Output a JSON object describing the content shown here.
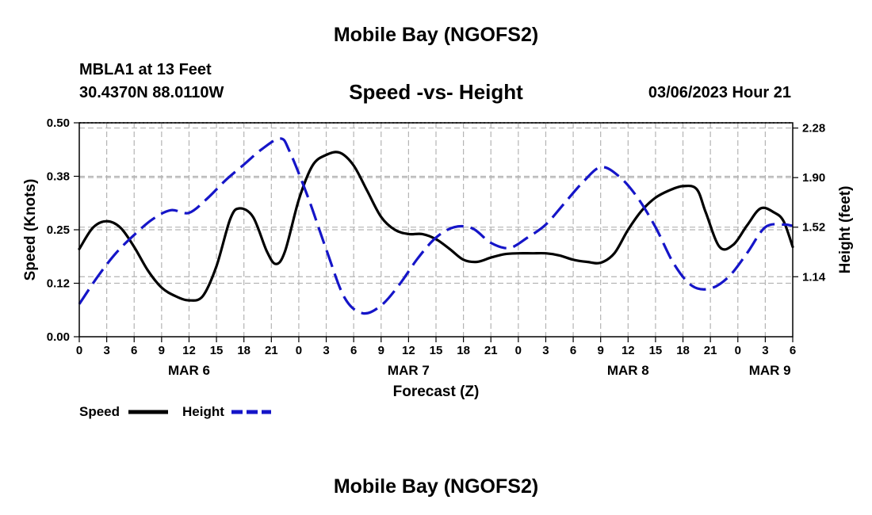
{
  "header": {
    "title": "Mobile Bay (NGOFS2)",
    "station": "MBLA1 at 13 Feet",
    "coords": "30.4370N  88.0110W",
    "subtitle": "Speed -vs- Height",
    "datetime": "03/06/2023 Hour 21"
  },
  "footer": {
    "title": "Mobile Bay (NGOFS2)"
  },
  "chart_data": {
    "type": "line",
    "xlabel": "Forecast (Z)",
    "ylabel": "Speed (Knots)",
    "ylabel_right": "Height (feet)",
    "xlim": [
      0,
      78
    ],
    "ylim": [
      0,
      0.5
    ],
    "ylim_right": [
      0.68,
      2.32
    ],
    "x_ticks": [
      0,
      3,
      6,
      9,
      12,
      15,
      18,
      21,
      24,
      27,
      30,
      33,
      36,
      39,
      42,
      45,
      48,
      51,
      54,
      57,
      60,
      63,
      66,
      69,
      72,
      75,
      78
    ],
    "x_tick_labels": [
      "0",
      "3",
      "6",
      "9",
      "12",
      "15",
      "18",
      "21",
      "0",
      "3",
      "6",
      "9",
      "12",
      "15",
      "18",
      "21",
      "0",
      "3",
      "6",
      "9",
      "12",
      "15",
      "18",
      "21",
      "0",
      "3",
      "6"
    ],
    "day_labels": [
      {
        "x": 12,
        "label": "MAR 6"
      },
      {
        "x": 36,
        "label": "MAR 7"
      },
      {
        "x": 60,
        "label": "MAR 8"
      },
      {
        "x": 75.5,
        "label": "MAR 9"
      }
    ],
    "y_ticks": [
      0.0,
      0.125,
      0.25,
      0.375,
      0.5
    ],
    "y_tick_labels": [
      "0.00",
      "0.12",
      "0.25",
      "0.38",
      "0.50"
    ],
    "y_ticks_right": [
      1.14,
      1.52,
      1.9,
      2.28
    ],
    "y_tick_labels_right": [
      "1.14",
      "1.52",
      "1.90",
      "2.28"
    ],
    "grid": true,
    "legend_position": "bottom-left",
    "series": [
      {
        "name": "Speed",
        "axis": "left",
        "color": "#000000",
        "style": "solid",
        "x": [
          0,
          1.5,
          3,
          4.5,
          6,
          7.5,
          9,
          10.5,
          12,
          13.5,
          15,
          16.5,
          17.5,
          19,
          20.5,
          21.5,
          22.5,
          24,
          25.5,
          27,
          28.5,
          30,
          31.5,
          33,
          34.5,
          36,
          37.5,
          39,
          40.5,
          42,
          43.5,
          45,
          46.5,
          48,
          49.5,
          51,
          52.5,
          54,
          55.5,
          57,
          58.5,
          60,
          61.5,
          63,
          64.5,
          66,
          67.5,
          68.5,
          70,
          71.5,
          73,
          74.5,
          76,
          77,
          78
        ],
        "values": [
          0.205,
          0.255,
          0.27,
          0.255,
          0.21,
          0.155,
          0.115,
          0.095,
          0.085,
          0.095,
          0.165,
          0.275,
          0.3,
          0.28,
          0.2,
          0.17,
          0.2,
          0.32,
          0.4,
          0.425,
          0.43,
          0.4,
          0.34,
          0.28,
          0.25,
          0.24,
          0.24,
          0.228,
          0.205,
          0.18,
          0.175,
          0.185,
          0.193,
          0.195,
          0.195,
          0.195,
          0.19,
          0.18,
          0.175,
          0.173,
          0.195,
          0.25,
          0.295,
          0.325,
          0.342,
          0.352,
          0.345,
          0.29,
          0.21,
          0.215,
          0.26,
          0.3,
          0.29,
          0.27,
          0.21
        ]
      },
      {
        "name": "Height",
        "axis": "right",
        "color": "#1515c8",
        "style": "dashed",
        "x": [
          0,
          2,
          4,
          6,
          8,
          10,
          12,
          14,
          16,
          18,
          20,
          22,
          23,
          25,
          27,
          29,
          31,
          33,
          35,
          37,
          39,
          41,
          43,
          45,
          47,
          49,
          51,
          53,
          55,
          57,
          59,
          61,
          63,
          65,
          67,
          69,
          71,
          73,
          75,
          77,
          78
        ],
        "values": [
          0.93,
          1.14,
          1.32,
          1.46,
          1.58,
          1.65,
          1.63,
          1.74,
          1.88,
          2.0,
          2.12,
          2.2,
          2.1,
          1.75,
          1.35,
          0.98,
          0.86,
          0.92,
          1.08,
          1.28,
          1.44,
          1.52,
          1.51,
          1.4,
          1.36,
          1.44,
          1.54,
          1.7,
          1.86,
          1.98,
          1.91,
          1.75,
          1.52,
          1.24,
          1.07,
          1.05,
          1.14,
          1.32,
          1.52,
          1.54,
          1.53
        ]
      }
    ]
  }
}
